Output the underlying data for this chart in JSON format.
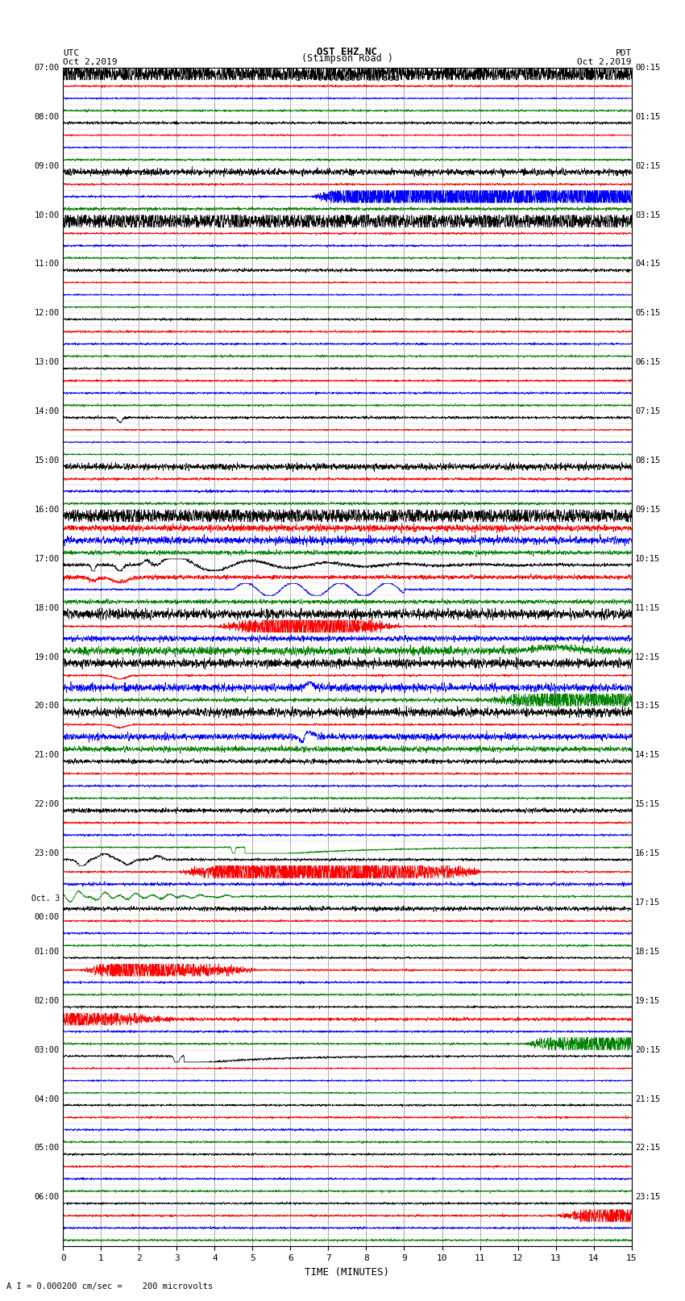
{
  "title_line1": "OST EHZ NC",
  "title_line2": "(Stimpson Road )",
  "title_scale": "I = 0.000200 cm/sec",
  "left_header_line1": "UTC",
  "left_header_line2": "Oct 2,2019",
  "right_header_line1": "PDT",
  "right_header_line2": "Oct 2,2019",
  "xlabel": "TIME (MINUTES)",
  "footer": "A I = 0.000200 cm/sec =    200 microvolts",
  "x_min": 0,
  "x_max": 15,
  "x_ticks": [
    0,
    1,
    2,
    3,
    4,
    5,
    6,
    7,
    8,
    9,
    10,
    11,
    12,
    13,
    14,
    15
  ],
  "bg_color": "#ffffff",
  "trace_colors": [
    "black",
    "red",
    "blue",
    "green"
  ],
  "num_rows": 96,
  "utc_labels": [
    "07:00",
    "08:00",
    "09:00",
    "10:00",
    "11:00",
    "12:00",
    "13:00",
    "14:00",
    "15:00",
    "16:00",
    "17:00",
    "18:00",
    "19:00",
    "20:00",
    "21:00",
    "22:00",
    "23:00",
    "Oct. 3\n00:00",
    "01:00",
    "02:00",
    "03:00",
    "04:00",
    "05:00",
    "06:00"
  ],
  "pdt_labels": [
    "00:15",
    "01:15",
    "02:15",
    "03:15",
    "04:15",
    "05:15",
    "06:15",
    "07:15",
    "08:15",
    "09:15",
    "10:15",
    "11:15",
    "12:15",
    "13:15",
    "14:15",
    "15:15",
    "16:15",
    "17:15",
    "18:15",
    "19:15",
    "20:15",
    "21:15",
    "22:15",
    "23:15"
  ],
  "fig_width": 8.5,
  "fig_height": 16.13,
  "dpi": 100
}
